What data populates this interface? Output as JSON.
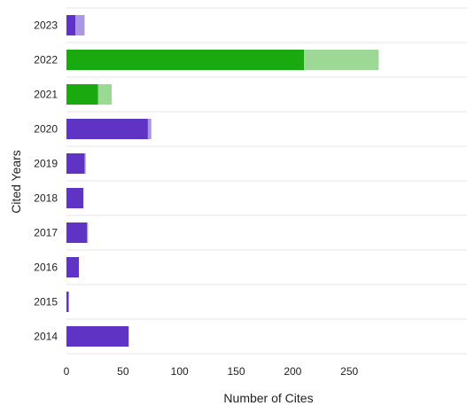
{
  "chart_data": {
    "type": "bar",
    "orientation": "horizontal",
    "stacked": true,
    "categories": [
      "2023",
      "2022",
      "2021",
      "2020",
      "2019",
      "2018",
      "2017",
      "2016",
      "2015",
      "2014"
    ],
    "series": [
      {
        "values": [
          8,
          210,
          28,
          72,
          16,
          15,
          18,
          11,
          2,
          55
        ],
        "colors": [
          "#5f33c4",
          "#1aa90e",
          "#1aa90e",
          "#5f33c4",
          "#5f33c4",
          "#5f33c4",
          "#5f33c4",
          "#5f33c4",
          "#5f33c4",
          "#5f33c4"
        ]
      },
      {
        "values": [
          8,
          66,
          12,
          3,
          1,
          0,
          1,
          0,
          0,
          0
        ],
        "colors": [
          "#ab96e2",
          "#9ed896",
          "#9ed896",
          "#ab96e2",
          "#ab96e2",
          "#ab96e2",
          "#ab96e2",
          "#ab96e2",
          "#ab96e2",
          "#ab96e2"
        ]
      }
    ],
    "xlabel": "Number of Cites",
    "ylabel": "Cited Years",
    "xlim": [
      0,
      300
    ],
    "xticks": [
      "0",
      "50",
      "100",
      "150",
      "200",
      "250"
    ],
    "grid": "horizontal",
    "legend": "none"
  }
}
